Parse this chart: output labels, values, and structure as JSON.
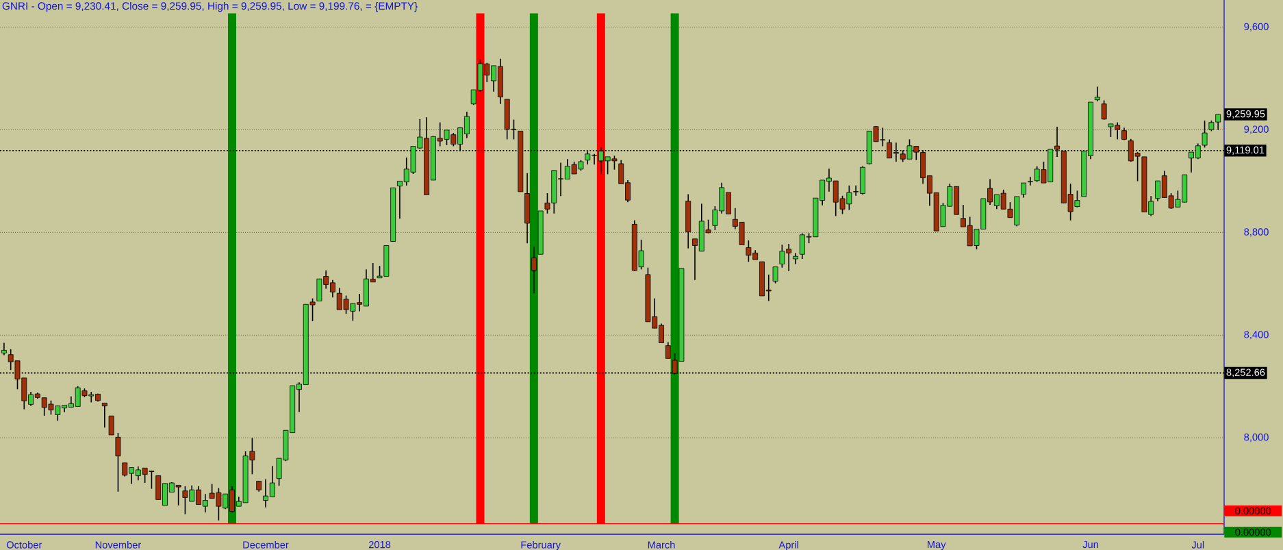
{
  "chart_data": {
    "type": "candlestick",
    "title": "GNRI - Open = 9,230.41, Close = 9,259.95, High = 9,259.95, Low = 9,199.76,   = {EMPTY}",
    "categories": [
      null,
      null,
      null,
      "October",
      null,
      null,
      null,
      null,
      null,
      null,
      null,
      null,
      null,
      null,
      null,
      null,
      null,
      "November",
      null,
      null,
      null,
      null,
      null,
      null,
      null,
      null,
      null,
      null,
      null,
      null,
      null,
      null,
      null,
      null,
      null,
      null,
      null,
      null,
      null,
      "December",
      null,
      null,
      null,
      null,
      null,
      null,
      null,
      null,
      null,
      null,
      null,
      null,
      null,
      null,
      null,
      null,
      "2018",
      null,
      null,
      null,
      null,
      null,
      null,
      null,
      null,
      null,
      null,
      null,
      null,
      null,
      null,
      null,
      null,
      null,
      null,
      null,
      null,
      null,
      null,
      null,
      "February",
      null,
      null,
      null,
      null,
      null,
      null,
      null,
      null,
      null,
      null,
      null,
      null,
      null,
      null,
      null,
      null,
      null,
      "March",
      null,
      null,
      null,
      null,
      null,
      null,
      null,
      null,
      null,
      null,
      null,
      null,
      null,
      null,
      null,
      null,
      null,
      null,
      "April",
      null,
      null,
      null,
      null,
      null,
      null,
      null,
      null,
      null,
      null,
      null,
      null,
      null,
      null,
      null,
      null,
      null,
      null,
      null,
      null,
      null,
      "May",
      null,
      null,
      null,
      null,
      null,
      null,
      null,
      null,
      null,
      null,
      null,
      null,
      null,
      null,
      null,
      null,
      null,
      null,
      null,
      null,
      null,
      null,
      "Jun",
      null,
      null,
      null,
      null,
      null,
      null,
      null,
      null,
      null,
      null,
      null,
      null,
      null,
      null,
      null,
      "Jul",
      null,
      null,
      null
    ],
    "ohlc": [
      [
        8330,
        8370,
        8322,
        8341
      ],
      [
        8324,
        8345,
        8264,
        8296
      ],
      [
        8300,
        8300,
        8189,
        8229
      ],
      [
        8233,
        8233,
        8111,
        8144
      ],
      [
        8130,
        8179,
        8124,
        8168
      ],
      [
        8171,
        8176,
        8152,
        8157
      ],
      [
        8156,
        8156,
        8086,
        8118
      ],
      [
        8131,
        8145,
        8090,
        8108
      ],
      [
        8090,
        8124,
        8066,
        8124
      ],
      [
        8116,
        8127,
        8100,
        8127
      ],
      [
        8119,
        8161,
        8119,
        8133
      ],
      [
        8122,
        8201,
        8122,
        8195
      ],
      [
        8183,
        8192,
        8158,
        8164
      ],
      [
        8163,
        8179,
        8138,
        8168
      ],
      [
        8170,
        8172,
        8141,
        8145
      ],
      [
        8135,
        8135,
        8040,
        8124
      ],
      [
        8085,
        8085,
        8011,
        8011
      ],
      [
        8002,
        8019,
        7790,
        7929
      ],
      [
        7902,
        7902,
        7849,
        7854
      ],
      [
        7861,
        7884,
        7820,
        7884
      ],
      [
        7852,
        7888,
        7834,
        7875
      ],
      [
        7882,
        7882,
        7824,
        7857
      ],
      [
        7870,
        7870,
        7801,
        7868
      ],
      [
        7852,
        7852,
        7759,
        7759
      ],
      [
        7736,
        7822,
        7736,
        7822
      ],
      [
        7788,
        7827,
        7788,
        7824
      ],
      [
        7815,
        7815,
        7736,
        7808
      ],
      [
        7793,
        7811,
        7702,
        7767
      ],
      [
        7752,
        7814,
        7752,
        7797
      ],
      [
        7797,
        7811,
        7740,
        7740
      ],
      [
        7733,
        7781,
        7709,
        7756
      ],
      [
        7784,
        7820,
        7764,
        7764
      ],
      [
        7786,
        7804,
        7678,
        7733
      ],
      [
        7726,
        7781,
        7722,
        7781
      ],
      [
        7797,
        7811,
        7709,
        7713
      ],
      [
        7733,
        7770,
        7733,
        7752
      ],
      [
        7747,
        7947,
        7747,
        7929
      ],
      [
        7947,
        7999,
        7858,
        7913
      ],
      [
        7831,
        7831,
        7790,
        7797
      ],
      [
        7756,
        7838,
        7729,
        7773
      ],
      [
        7770,
        7890,
        7770,
        7824
      ],
      [
        7841,
        7920,
        7813,
        7920
      ],
      [
        7913,
        8029,
        7909,
        8029
      ],
      [
        8020,
        8203,
        8020,
        8203
      ],
      [
        8188,
        8216,
        8100,
        8209
      ],
      [
        8207,
        8520,
        8207,
        8520
      ],
      [
        8529,
        8543,
        8454,
        8518
      ],
      [
        8533,
        8619,
        8533,
        8619
      ],
      [
        8629,
        8652,
        8581,
        8597
      ],
      [
        8604,
        8615,
        8547,
        8568
      ],
      [
        8563,
        8584,
        8499,
        8499
      ],
      [
        8540,
        8554,
        8483,
        8499
      ],
      [
        8493,
        8523,
        8456,
        8523
      ],
      [
        8527,
        8561,
        8493,
        8520
      ],
      [
        8513,
        8656,
        8513,
        8619
      ],
      [
        8618,
        8681,
        8607,
        8607
      ],
      [
        8623,
        8670,
        8623,
        8630
      ],
      [
        8629,
        8749,
        8629,
        8749
      ],
      [
        8765,
        8974,
        8765,
        8974
      ],
      [
        8981,
        9000,
        8854,
        9000
      ],
      [
        8997,
        9092,
        8983,
        9047
      ],
      [
        9035,
        9136,
        9028,
        9136
      ],
      [
        9129,
        9242,
        9126,
        9172
      ],
      [
        9167,
        9249,
        8947,
        8947
      ],
      [
        9004,
        9174,
        9004,
        9174
      ],
      [
        9167,
        9229,
        9136,
        9156
      ],
      [
        9163,
        9199,
        9140,
        9199
      ],
      [
        9181,
        9188,
        9136,
        9144
      ],
      [
        9144,
        9208,
        9117,
        9208
      ],
      [
        9184,
        9270,
        9168,
        9252
      ],
      [
        9301,
        9356,
        9297,
        9356
      ],
      [
        9354,
        9474,
        9349,
        9458
      ],
      [
        9457,
        9461,
        9386,
        9413
      ],
      [
        9391,
        9450,
        9349,
        9450
      ],
      [
        9447,
        9477,
        9301,
        9328
      ],
      [
        9319,
        9319,
        9163,
        9202
      ],
      [
        9202,
        9240,
        9163,
        9200
      ],
      [
        9195,
        9195,
        8959,
        8959
      ],
      [
        8952,
        9031,
        8758,
        8836
      ],
      [
        8701,
        8745,
        8563,
        8652
      ],
      [
        8715,
        8884,
        8715,
        8884
      ],
      [
        8915,
        8953,
        8874,
        8891
      ],
      [
        8915,
        9042,
        8874,
        9042
      ],
      [
        9008,
        9072,
        8942,
        9010
      ],
      [
        9008,
        9086,
        9008,
        9058
      ],
      [
        9065,
        9076,
        9028,
        9028
      ],
      [
        9047,
        9082,
        9041,
        9076
      ],
      [
        9082,
        9116,
        9065,
        9106
      ],
      [
        9100,
        9106,
        9065,
        9101
      ],
      [
        9079,
        9133,
        9027,
        9117
      ],
      [
        9079,
        9095,
        9027,
        9095
      ],
      [
        9087,
        9099,
        9045,
        9079
      ],
      [
        9068,
        9082,
        8990,
        8990
      ],
      [
        8994,
        9004,
        8918,
        8926
      ],
      [
        8832,
        8847,
        8649,
        8652
      ],
      [
        8666,
        8772,
        8656,
        8729
      ],
      [
        8636,
        8663,
        8452,
        8452
      ],
      [
        8472,
        8543,
        8427,
        8427
      ],
      [
        8438,
        8445,
        8370,
        8370
      ],
      [
        8359,
        8373,
        8309,
        8309
      ],
      [
        8302,
        8329,
        8247,
        8251
      ],
      [
        8298,
        8660,
        8298,
        8660
      ],
      [
        8922,
        8949,
        8738,
        8802
      ],
      [
        8775,
        8775,
        8615,
        8749
      ],
      [
        8727,
        8912,
        8727,
        8844
      ],
      [
        8810,
        8850,
        8797,
        8799
      ],
      [
        8827,
        8902,
        8809,
        8888
      ],
      [
        8884,
        8994,
        8874,
        8975
      ],
      [
        8956,
        8956,
        8872,
        8872
      ],
      [
        8851,
        8895,
        8813,
        8824
      ],
      [
        8840,
        8840,
        8752,
        8752
      ],
      [
        8741,
        8769,
        8686,
        8711
      ],
      [
        8720,
        8731,
        8694,
        8694
      ],
      [
        8686,
        8686,
        8553,
        8553
      ],
      [
        8576,
        8636,
        8533,
        8572
      ],
      [
        8610,
        8666,
        8602,
        8666
      ],
      [
        8677,
        8752,
        8663,
        8727
      ],
      [
        8735,
        8756,
        8649,
        8720
      ],
      [
        8697,
        8720,
        8677,
        8707
      ],
      [
        8715,
        8797,
        8697,
        8791
      ],
      [
        8782,
        8797,
        8758,
        8784
      ],
      [
        8783,
        8934,
        8783,
        8934
      ],
      [
        8925,
        9004,
        8906,
        9004
      ],
      [
        8999,
        9049,
        8959,
        9012
      ],
      [
        9001,
        9001,
        8864,
        8918
      ],
      [
        8932,
        8943,
        8872,
        8891
      ],
      [
        8911,
        8983,
        8888,
        8956
      ],
      [
        8958,
        8983,
        8943,
        8960
      ],
      [
        8952,
        9058,
        8948,
        9054
      ],
      [
        9068,
        9195,
        9065,
        9195
      ],
      [
        9213,
        9215,
        9154,
        9154
      ],
      [
        9162,
        9208,
        9136,
        9160
      ],
      [
        9150,
        9163,
        9090,
        9090
      ],
      [
        9108,
        9150,
        9076,
        9112
      ],
      [
        9106,
        9120,
        9075,
        9086
      ],
      [
        9086,
        9163,
        9086,
        9138
      ],
      [
        9136,
        9136,
        9082,
        9113
      ],
      [
        9112,
        9120,
        8990,
        9013
      ],
      [
        9021,
        9021,
        8904,
        8953
      ],
      [
        8955,
        8955,
        8806,
        8806
      ],
      [
        8823,
        8915,
        8823,
        8906
      ],
      [
        8902,
        8990,
        8902,
        8979
      ],
      [
        8979,
        8979,
        8870,
        8870
      ],
      [
        8855,
        8908,
        8822,
        8822
      ],
      [
        8827,
        8861,
        8748,
        8748
      ],
      [
        8749,
        8813,
        8734,
        8813
      ],
      [
        8813,
        8932,
        8813,
        8932
      ],
      [
        8972,
        9008,
        8908,
        8919
      ],
      [
        8904,
        8948,
        8891,
        8948
      ],
      [
        8953,
        8967,
        8891,
        8891
      ],
      [
        8891,
        8918,
        8858,
        8858
      ],
      [
        8829,
        8940,
        8824,
        8940
      ],
      [
        8949,
        8993,
        8936,
        8993
      ],
      [
        8997,
        9017,
        8983,
        8999
      ],
      [
        9002,
        9058,
        8997,
        9047
      ],
      [
        9045,
        9076,
        8993,
        8993
      ],
      [
        8997,
        9124,
        8997,
        9124
      ],
      [
        9137,
        9212,
        9095,
        9124
      ],
      [
        9117,
        9117,
        8915,
        8915
      ],
      [
        8949,
        8990,
        8847,
        8881
      ],
      [
        8901,
        8963,
        8898,
        8925
      ],
      [
        8940,
        9117,
        8940,
        9117
      ],
      [
        9099,
        9308,
        9086,
        9308
      ],
      [
        9317,
        9368,
        9311,
        9327
      ],
      [
        9301,
        9315,
        9240,
        9242
      ],
      [
        9212,
        9223,
        9172,
        9223
      ],
      [
        9218,
        9229,
        9163,
        9201
      ],
      [
        9197,
        9208,
        9160,
        9163
      ],
      [
        9157,
        9165,
        9076,
        9079
      ],
      [
        9109,
        9113,
        9000,
        9097
      ],
      [
        9095,
        9095,
        8880,
        8880
      ],
      [
        8870,
        8942,
        8864,
        8921
      ],
      [
        8933,
        9001,
        8922,
        9001
      ],
      [
        9021,
        9040,
        8936,
        8936
      ],
      [
        8943,
        8953,
        8892,
        8895
      ],
      [
        8899,
        8963,
        8899,
        8929
      ],
      [
        8918,
        9025,
        8918,
        9025
      ],
      [
        9090,
        9113,
        9034,
        9113
      ],
      [
        9090,
        9147,
        9086,
        9138
      ],
      [
        9140,
        9236,
        9131,
        9188
      ],
      [
        9201,
        9236,
        9195,
        9229
      ],
      [
        9230.41,
        9259.95,
        9199.76,
        9259.95
      ]
    ],
    "ylim": [
      7624,
      9706
    ],
    "yticks": [
      {
        "value": 8000,
        "label": "8,000"
      },
      {
        "value": 8400,
        "label": "8,400"
      },
      {
        "value": 8800,
        "label": "8,800"
      },
      {
        "value": 9200,
        "label": "9,200"
      },
      {
        "value": 9600,
        "label": "9,600"
      }
    ],
    "grid": "y",
    "ref_lines": [
      {
        "axis": "y",
        "value": 9119.01,
        "label": "9,119.01",
        "color": "#000000",
        "line_style": "dotted"
      },
      {
        "axis": "y",
        "value": 8252.66,
        "label": "8,252.66",
        "color": "#000000",
        "line_style": "dotted"
      },
      {
        "axis": "y",
        "value": 7665,
        "color": "#ff0000",
        "line_style": "solid"
      }
    ],
    "annotations": [
      "9,259.95",
      "0.00000",
      "0.00000"
    ]
  }
}
